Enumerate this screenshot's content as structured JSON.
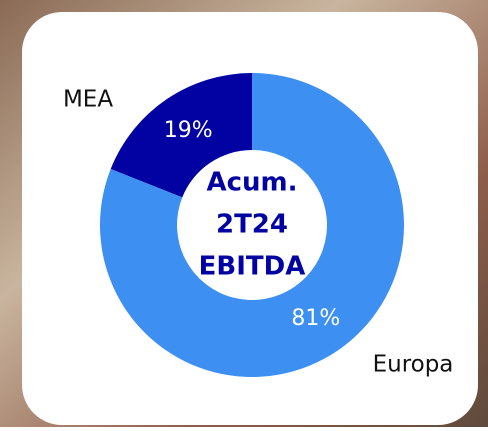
{
  "chart_data": {
    "type": "pie",
    "donut": true,
    "categories": [
      "MEA",
      "Europa"
    ],
    "values": [
      19,
      81
    ],
    "value_labels": [
      "19%",
      "81%"
    ],
    "colors": [
      "#0202a2",
      "#3d8ff2"
    ],
    "center_text": [
      "Acum.",
      "2T24",
      "EBITDA"
    ]
  }
}
